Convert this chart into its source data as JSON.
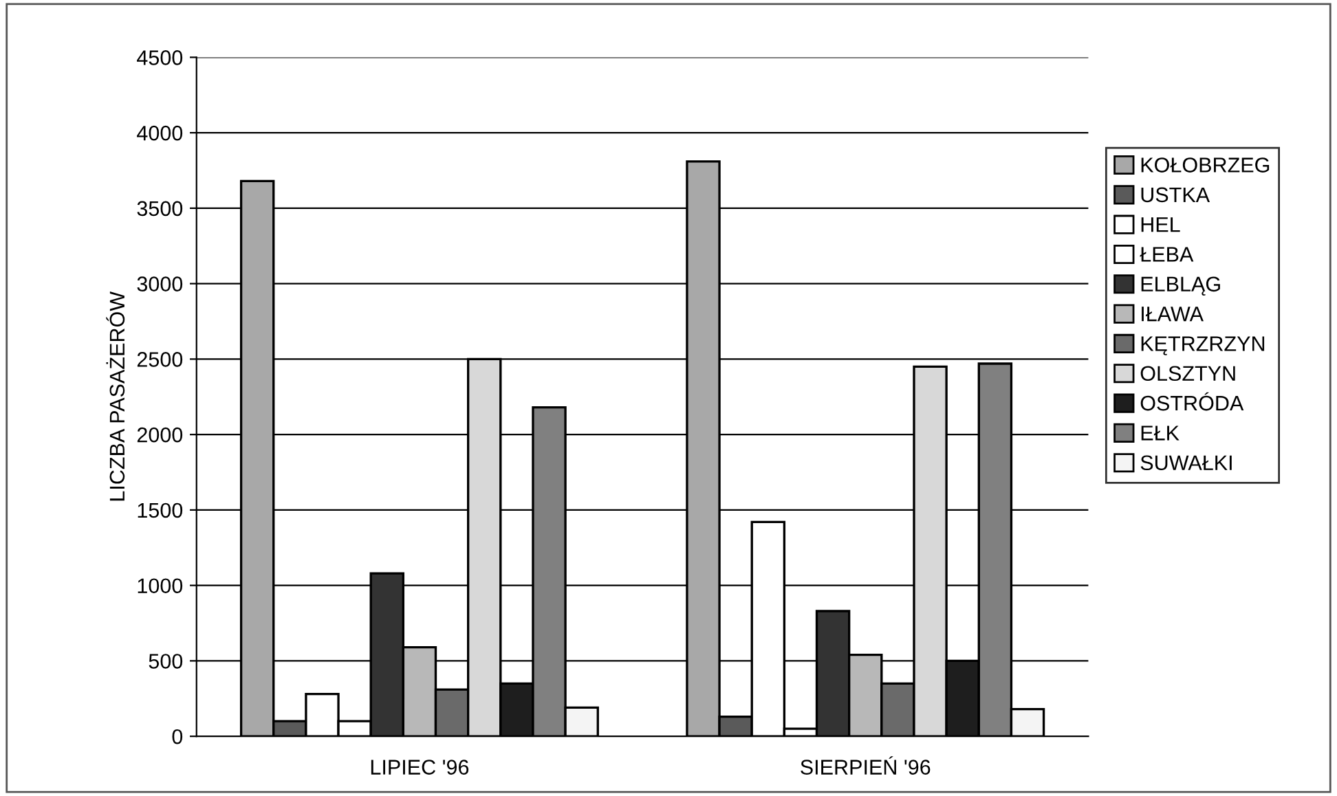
{
  "chart_data": {
    "type": "bar",
    "ylabel": "LICZBA PASAŻERÓW",
    "categories": [
      "LIPIEC '96",
      "SIERPIEŃ '96"
    ],
    "series": [
      {
        "name": "KOŁOBRZEG",
        "color": "#a8a8a8",
        "values": [
          3680,
          3810
        ]
      },
      {
        "name": "USTKA",
        "color": "#5a5a5a",
        "values": [
          100,
          130
        ]
      },
      {
        "name": "HEL",
        "color": "#ffffff",
        "values": [
          280,
          1420
        ]
      },
      {
        "name": "ŁEBA",
        "color": "#ffffff",
        "values": [
          100,
          50
        ]
      },
      {
        "name": "ELBLĄG",
        "color": "#333333",
        "values": [
          1080,
          830
        ]
      },
      {
        "name": "IŁAWA",
        "color": "#b8b8b8",
        "values": [
          590,
          540
        ]
      },
      {
        "name": "KĘTRZRZYN",
        "color": "#6a6a6a",
        "values": [
          310,
          350
        ]
      },
      {
        "name": "OLSZTYN",
        "color": "#d8d8d8",
        "values": [
          2500,
          2450
        ]
      },
      {
        "name": "OSTRÓDA",
        "color": "#1e1e1e",
        "values": [
          350,
          500
        ]
      },
      {
        "name": "EŁK",
        "color": "#808080",
        "values": [
          2180,
          2470
        ]
      },
      {
        "name": "SUWAŁKI",
        "color": "#f4f4f4",
        "values": [
          190,
          180
        ]
      }
    ],
    "ylim": [
      0,
      4500
    ],
    "yticks": [
      0,
      500,
      1000,
      1500,
      2000,
      2500,
      3000,
      3500,
      4000,
      4500
    ],
    "grid": "y",
    "legend": "right"
  }
}
